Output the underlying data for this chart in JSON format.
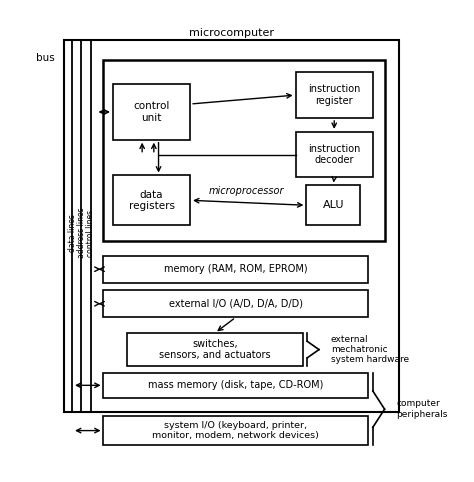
{
  "bg_color": "#ffffff",
  "line_color": "#000000",
  "figsize": [
    4.74,
    4.82
  ],
  "dpi": 100,
  "microcomputer_label": "microcomputer",
  "microprocessor_label": "microprocessor",
  "bus_label": "bus",
  "labels": {
    "data_lines": "data lines",
    "address_lines": "address lines",
    "control_lines": "control lines",
    "control_unit": "control\nunit",
    "instruction_register": "instruction\nregister",
    "instruction_decoder": "instruction\ndecoder",
    "data_registers": "data\nregisters",
    "ALU": "ALU",
    "memory": "memory (RAM, ROM, EPROM)",
    "external_io": "external I/O (A/D, D/A, D/D)",
    "switches": "switches,\nsensors, and actuators",
    "mass_memory": "mass memory (disk, tape, CD-ROM)",
    "system_io": "system I/O (keyboard, printer,\nmonitor, modem, network devices)",
    "external_mechatronic": "external\nmechatronic\nsystem hardware",
    "computer_peripherals": "computer\nperipherals"
  }
}
